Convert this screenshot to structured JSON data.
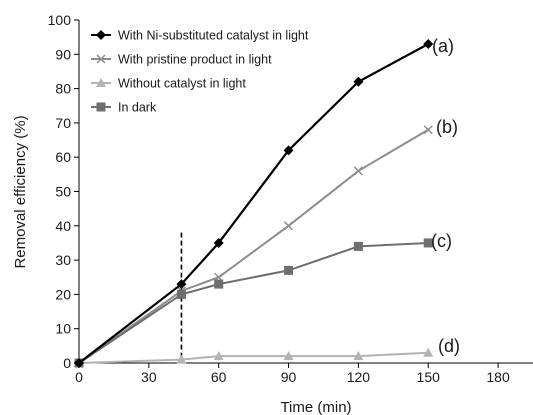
{
  "chart_data": {
    "type": "line",
    "xlabel": "Time (min)",
    "ylabel": "Removal efficiency (%)",
    "xlim": [
      0,
      195
    ],
    "ylim": [
      0,
      100
    ],
    "xticks": [
      0,
      30,
      60,
      90,
      120,
      150,
      180
    ],
    "yticks": [
      0,
      10,
      20,
      30,
      40,
      50,
      60,
      70,
      80,
      90,
      100
    ],
    "grid": false,
    "legend_position": "top-left",
    "vline_x": 44,
    "series": [
      {
        "name": "With Ni-substituted catalyst in light",
        "tag": "(a)",
        "color": "#000000",
        "marker": "diamond",
        "x": [
          0,
          44,
          60,
          90,
          120,
          150
        ],
        "y": [
          0,
          23,
          35,
          62,
          82,
          93
        ]
      },
      {
        "name": "With pristine product in light",
        "tag": "(b)",
        "color": "#8c8c8c",
        "marker": "x",
        "x": [
          0,
          44,
          60,
          90,
          120,
          150
        ],
        "y": [
          0,
          21,
          25,
          40,
          56,
          68
        ]
      },
      {
        "name": "Without catalyst in light",
        "tag": "(d)",
        "color": "#b3b3b3",
        "marker": "triangle",
        "x": [
          0,
          44,
          60,
          90,
          120,
          150
        ],
        "y": [
          0,
          1,
          2,
          2,
          2,
          3
        ]
      },
      {
        "name": "In dark",
        "tag": "(c)",
        "color": "#6e6e6e",
        "marker": "square",
        "x": [
          0,
          44,
          60,
          90,
          120,
          150
        ],
        "y": [
          0,
          20,
          23,
          27,
          34,
          35
        ]
      }
    ]
  }
}
